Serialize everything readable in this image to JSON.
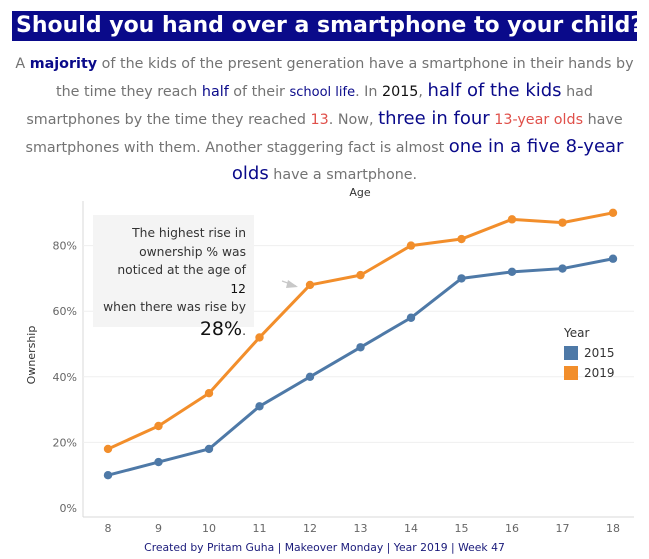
{
  "title": "Should you hand over a smartphone to your child?",
  "intro": {
    "p1": "A ",
    "p2": "majority",
    "p3": " of the kids of the present generation have a smartphone in their hands by the time they reach ",
    "p4": "half",
    "p5": " of their ",
    "p6": "school life",
    "p7": ". In ",
    "p8": "2015",
    "p9": ", ",
    "p10": "half of the kids",
    "p11": " had smartphones by the time they reached ",
    "p12": "13",
    "p13": ". Now, ",
    "p14": "three in four",
    "p15": " ",
    "p16": "13-year olds",
    "p17": " have smartphones with them. Another staggering fact is almost ",
    "p18": "one in a five 8-year olds",
    "p19": " have a smartphone."
  },
  "annotation": {
    "line1": "The highest rise in",
    "line2": "ownership % was",
    "line3a": "noticed at the age of ",
    "line3b": "12",
    "line4": "when there was rise by",
    "pct": "28%",
    "pct_suffix": "."
  },
  "footer": "Created by Pritam Guha | Makeover Monday | Year 2019 | Week 47",
  "chart_data": {
    "type": "line",
    "xlabel": "Age",
    "ylabel": "Ownership",
    "x": [
      8,
      9,
      10,
      11,
      12,
      13,
      14,
      15,
      16,
      17,
      18
    ],
    "y_ticks": [
      "0%",
      "20%",
      "40%",
      "60%",
      "80%"
    ],
    "y_tick_values": [
      0,
      20,
      40,
      60,
      80
    ],
    "ylim": [
      0,
      95
    ],
    "grid": true,
    "legend_title": "Year",
    "legend_position": "right",
    "series": [
      {
        "name": "2015",
        "color": "#4e79a7",
        "values": [
          10,
          14,
          18,
          31,
          40,
          49,
          58,
          70,
          72,
          73,
          76
        ]
      },
      {
        "name": "2019",
        "color": "#f28e2b",
        "values": [
          18,
          25,
          35,
          52,
          68,
          71,
          80,
          82,
          88,
          87,
          90
        ]
      }
    ]
  }
}
